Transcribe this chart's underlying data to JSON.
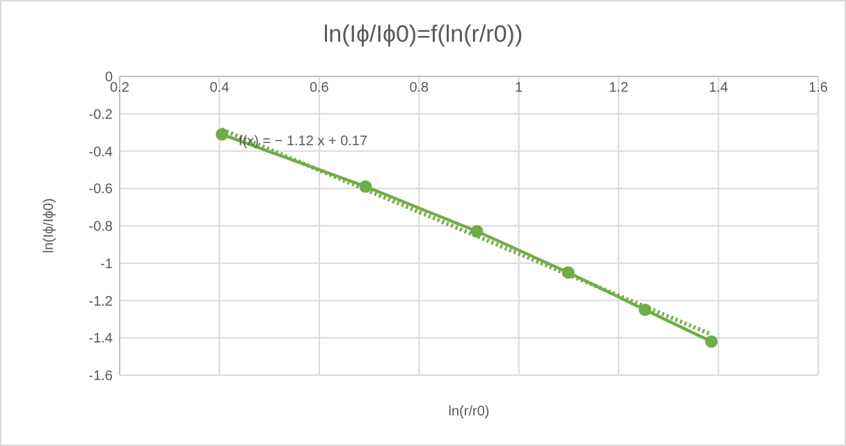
{
  "chart_data": {
    "type": "line",
    "title": "ln(Iϕ/Iϕ0)=f(ln(r/r0))",
    "xlabel": "ln(r/r0)",
    "ylabel": "ln(Iϕ/Iϕ0)",
    "xlim": [
      0.2,
      1.6
    ],
    "xticks": [
      0.2,
      0.4,
      0.6,
      0.8,
      1,
      1.2,
      1.4,
      1.6
    ],
    "ylim": [
      -1.6,
      0
    ],
    "yticks": [
      0,
      -0.2,
      -0.4,
      -0.6,
      -0.8,
      -1,
      -1.2,
      -1.4,
      -1.6
    ],
    "grid": true,
    "series": [
      {
        "color": "#70ad47",
        "marker": "circle",
        "line_style": "solid",
        "x": [
          0.405,
          0.693,
          0.916,
          1.099,
          1.253,
          1.386
        ],
        "values": [
          -0.31,
          -0.59,
          -0.83,
          -1.05,
          -1.25,
          -1.42
        ]
      },
      {
        "color": "#70ad47",
        "marker": "none",
        "line_style": "dotted",
        "x": [
          0.405,
          1.386
        ],
        "values": [
          -0.284,
          -1.382
        ]
      }
    ],
    "annotations": [
      "f(x) = − 1.12 x + 0.17"
    ]
  }
}
